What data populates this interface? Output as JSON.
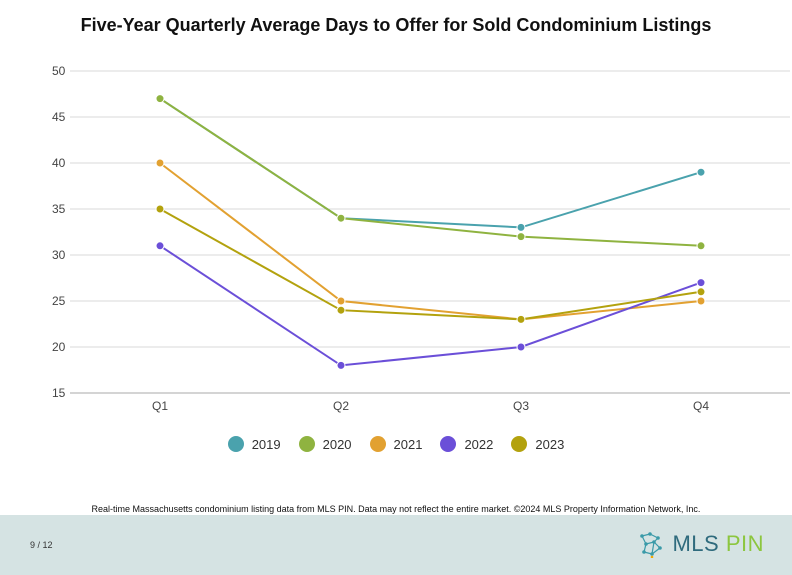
{
  "title": "Five-Year Quarterly Average Days to Offer for Sold Condominium Listings",
  "footnote": "Real-time Massachusetts condominium listing data from MLS PIN. Data may not reflect the entire market. ©2024 MLS Property Information Network, Inc.",
  "page_number": "9 / 12",
  "logo": {
    "part1": "MLS ",
    "part2": "PIN"
  },
  "colors": {
    "2019": "#4aa2ad",
    "2020": "#8fb340",
    "2021": "#e2a131",
    "2022": "#6b4fd8",
    "2023": "#b3a20e"
  },
  "chart_data": {
    "type": "line",
    "title": "Five-Year Quarterly Average Days to Offer for Sold Condominium Listings",
    "xlabel": "",
    "ylabel": "",
    "categories": [
      "Q1",
      "Q2",
      "Q3",
      "Q4"
    ],
    "ylim": [
      15,
      50
    ],
    "yticks": [
      15,
      20,
      25,
      30,
      35,
      40,
      45,
      50
    ],
    "grid": true,
    "legend_position": "bottom",
    "series": [
      {
        "name": "2019",
        "color": "#4aa2ad",
        "values": [
          47,
          34,
          33,
          39
        ]
      },
      {
        "name": "2020",
        "color": "#8fb340",
        "values": [
          47,
          34,
          32,
          31
        ]
      },
      {
        "name": "2021",
        "color": "#e2a131",
        "values": [
          40,
          25,
          23,
          25
        ]
      },
      {
        "name": "2022",
        "color": "#6b4fd8",
        "values": [
          31,
          18,
          20,
          27
        ]
      },
      {
        "name": "2023",
        "color": "#b3a20e",
        "values": [
          35,
          24,
          23,
          26
        ]
      }
    ]
  }
}
